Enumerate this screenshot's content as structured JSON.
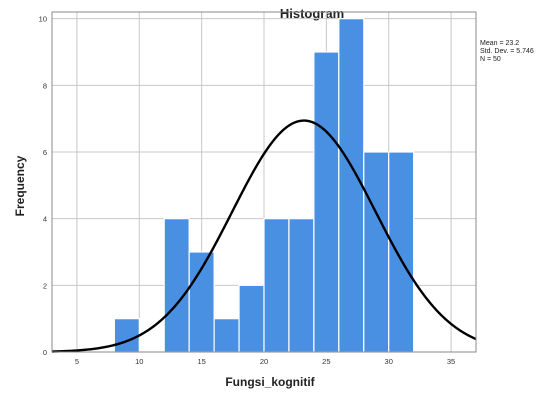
{
  "chart_data": {
    "type": "bar",
    "title": "Histogram",
    "xlabel": "Fungsi_kognitif",
    "ylabel": "Frequency",
    "bins": [
      {
        "start": 8,
        "end": 10,
        "value": 1
      },
      {
        "start": 12,
        "end": 14,
        "value": 4
      },
      {
        "start": 14,
        "end": 16,
        "value": 3
      },
      {
        "start": 16,
        "end": 18,
        "value": 1
      },
      {
        "start": 18,
        "end": 20,
        "value": 2
      },
      {
        "start": 20,
        "end": 22,
        "value": 4
      },
      {
        "start": 22,
        "end": 24,
        "value": 4
      },
      {
        "start": 24,
        "end": 26,
        "value": 9
      },
      {
        "start": 26,
        "end": 28,
        "value": 10
      },
      {
        "start": 28,
        "end": 30,
        "value": 6
      },
      {
        "start": 30,
        "end": 32,
        "value": 6
      }
    ],
    "x_ticks": [
      5,
      10,
      15,
      20,
      25,
      30,
      35
    ],
    "y_ticks": [
      0,
      2,
      4,
      6,
      8,
      10
    ],
    "xlim": [
      3,
      37
    ],
    "ylim": [
      0,
      10.2
    ],
    "grid": true,
    "bar_color": "#4a90e2",
    "normal_curve": {
      "mean": 23.2,
      "std_dev": 5.746,
      "n": 50
    },
    "stats": {
      "mean_label": "Mean = 23.2",
      "std_label": "Std. Dev. = 5.746",
      "n_label": "N = 50"
    }
  }
}
